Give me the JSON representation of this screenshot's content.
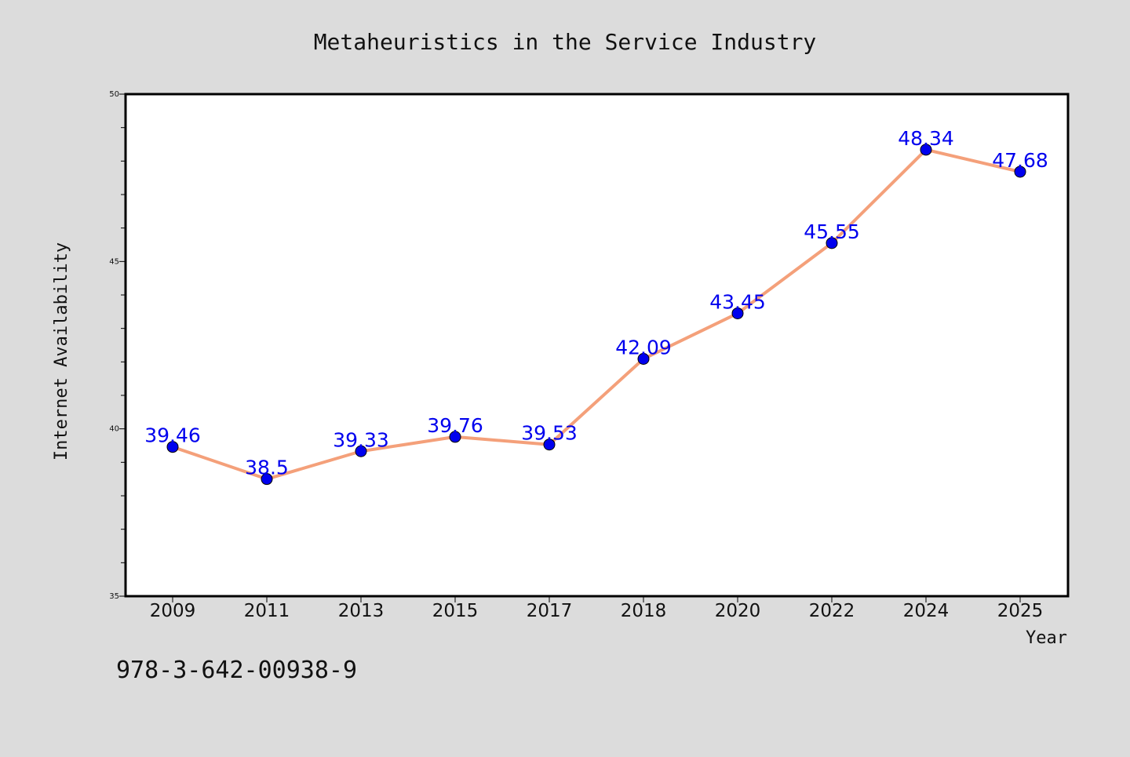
{
  "chart_data": {
    "type": "line",
    "title": "Metaheuristics in the Service Industry",
    "xlabel": "Year",
    "ylabel": "Internet Availability",
    "categories": [
      "2009",
      "2011",
      "2013",
      "2015",
      "2017",
      "2018",
      "2020",
      "2022",
      "2024",
      "2025"
    ],
    "series": [
      {
        "values": [
          39.46,
          38.5,
          39.33,
          39.76,
          39.53,
          42.09,
          43.45,
          45.55,
          48.34,
          47.68
        ],
        "data_labels": [
          "39.46",
          "38.5",
          "39.33",
          "39.76",
          "39.53",
          "42.09",
          "43.45",
          "45.55",
          "48.34",
          "47.68"
        ],
        "line_color": "#f4a07a",
        "marker_color": "#0000ee"
      }
    ],
    "ylim": [
      35,
      50
    ],
    "y_ticks": [
      35,
      40,
      45,
      50
    ],
    "grid": false,
    "legend": "none"
  },
  "annotation": "978-3-642-00938-9",
  "colors": {
    "background": "#dcdcdc",
    "plot_background": "#ffffff",
    "axis": "#000000",
    "label_text": "#0000ee"
  }
}
